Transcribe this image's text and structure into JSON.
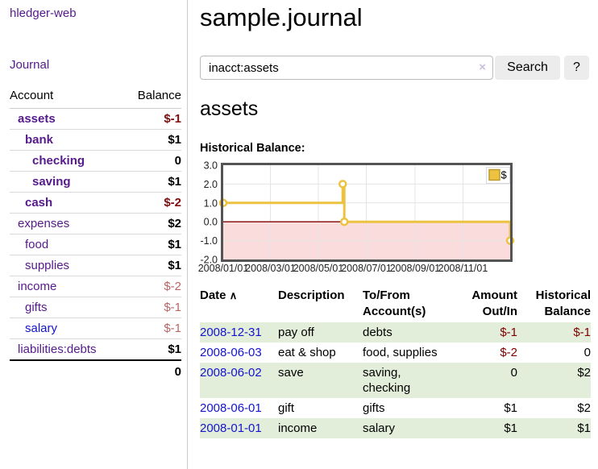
{
  "colors": {
    "link_purple": "#551a8b",
    "link_blue": "#1414cc",
    "negative_strong": "#7f0d0d",
    "negative_soft": "#b76666",
    "row_stripe_green": "#e2eeda",
    "button_gray": "#ececec"
  },
  "sidebar": {
    "brand": "hledger-web",
    "nav": [
      {
        "label": "Journal"
      }
    ],
    "accounts_table": {
      "col_account": "Account",
      "col_balance": "Balance",
      "items": [
        {
          "name": "assets",
          "depth": 1,
          "balance": "$-1",
          "emph": true,
          "balance_class": "neg-strong"
        },
        {
          "name": "bank",
          "depth": 2,
          "balance": "$1",
          "emph": true,
          "balance_class": "pos"
        },
        {
          "name": "checking",
          "depth": 3,
          "balance": "0",
          "emph": true,
          "balance_class": "pos"
        },
        {
          "name": "saving",
          "depth": 3,
          "balance": "$1",
          "emph": true,
          "balance_class": "pos"
        },
        {
          "name": "cash",
          "depth": 2,
          "balance": "$-2",
          "emph": true,
          "balance_class": "neg-strong"
        },
        {
          "name": "expenses",
          "depth": 1,
          "balance": "$2",
          "emph": false,
          "balance_class": "pos"
        },
        {
          "name": "food",
          "depth": 2,
          "balance": "$1",
          "emph": false,
          "balance_class": "pos"
        },
        {
          "name": "supplies",
          "depth": 2,
          "balance": "$1",
          "emph": false,
          "balance_class": "pos"
        },
        {
          "name": "income",
          "depth": 1,
          "balance": "$-2",
          "emph": false,
          "balance_class": "neg-soft"
        },
        {
          "name": "gifts",
          "depth": 2,
          "balance": "$-1",
          "emph": false,
          "balance_class": "neg-soft"
        },
        {
          "name": "salary",
          "depth": 2,
          "balance": "$-1",
          "emph": false,
          "balance_class": "neg-soft",
          "blue": true
        },
        {
          "name": "liabilities:debts",
          "depth": 1,
          "balance": "$1",
          "emph": false,
          "balance_class": "pos"
        }
      ],
      "total": "0"
    }
  },
  "header": {
    "title": "sample.journal"
  },
  "search": {
    "value": "inacct:assets",
    "clear_icon": "×",
    "button": "Search",
    "help_button": "?"
  },
  "account_page": {
    "heading": "assets",
    "chart_label": "Historical Balance:"
  },
  "chart_data": {
    "type": "line",
    "step": true,
    "title": "Historical Balance",
    "series": [
      {
        "name": "$",
        "color": "#edc240",
        "points": [
          [
            "2008-01-01",
            1
          ],
          [
            "2008-06-01",
            2
          ],
          [
            "2008-06-03",
            0
          ],
          [
            "2008-12-31",
            -1
          ]
        ]
      }
    ],
    "x_ticks": [
      "2008/01/01",
      "2008/03/01",
      "2008/05/01",
      "2008/07/01",
      "2008/09/01",
      "2008/11/01"
    ],
    "y_ticks": [
      "3.0",
      "2.0",
      "1.0",
      "0.0",
      "-1.0",
      "-2.0"
    ],
    "xlim": [
      "2008-01-01",
      "2008-12-31"
    ],
    "ylim": [
      -2,
      3
    ],
    "grid": true,
    "legend": {
      "label": "$",
      "position": "top-right"
    },
    "negative_region_fill": "#fbdcdc",
    "zero_line_color": "#8b1515",
    "border_color": "#545454"
  },
  "register": {
    "headers": {
      "date": "Date",
      "sort_icon": "∧",
      "description": "Description",
      "tofrom_line1": "To/From",
      "tofrom_line2": "Account(s)",
      "amount_line1": "Amount",
      "amount_line2": "Out/In",
      "balance_line1": "Historical",
      "balance_line2": "Balance"
    },
    "rows": [
      {
        "date": "2008-12-31",
        "description": "pay off",
        "tofrom": "debts",
        "amount": "$-1",
        "balance": "$-1"
      },
      {
        "date": "2008-06-03",
        "description": "eat & shop",
        "tofrom": "food, supplies",
        "amount": "$-2",
        "balance": "0"
      },
      {
        "date": "2008-06-02",
        "description": "save",
        "tofrom": "saving,\nchecking",
        "amount": "0",
        "balance": "$2"
      },
      {
        "date": "2008-06-01",
        "description": "gift",
        "tofrom": "gifts",
        "amount": "$1",
        "balance": "$2"
      },
      {
        "date": "2008-01-01",
        "description": "income",
        "tofrom": "salary",
        "amount": "$1",
        "balance": "$1"
      }
    ]
  }
}
